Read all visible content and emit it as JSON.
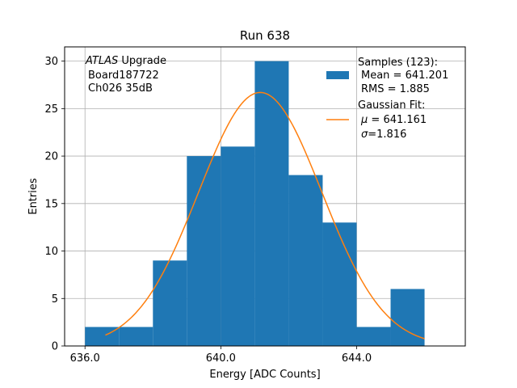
{
  "chart_data": {
    "type": "bar",
    "title": "Run 638",
    "xlabel": "Energy [ADC Counts]",
    "ylabel": "Entries",
    "xlim": [
      635.4,
      647.2
    ],
    "ylim": [
      0,
      31.5
    ],
    "x_ticks": [
      636,
      640,
      644
    ],
    "x_tick_labels": [
      "636.0",
      "640.0",
      "644.0"
    ],
    "y_ticks": [
      0,
      5,
      10,
      15,
      20,
      25,
      30
    ],
    "y_tick_labels": [
      "0",
      "5",
      "10",
      "15",
      "20",
      "25",
      "30"
    ],
    "grid": true,
    "bins": [
      {
        "start": 636,
        "end": 637,
        "count": 2
      },
      {
        "start": 637,
        "end": 638,
        "count": 2
      },
      {
        "start": 638,
        "end": 639,
        "count": 9
      },
      {
        "start": 639,
        "end": 640,
        "count": 20
      },
      {
        "start": 640,
        "end": 641,
        "count": 21
      },
      {
        "start": 641,
        "end": 642,
        "count": 30
      },
      {
        "start": 642,
        "end": 643,
        "count": 18
      },
      {
        "start": 643,
        "end": 644,
        "count": 13
      },
      {
        "start": 644,
        "end": 645,
        "count": 2
      },
      {
        "start": 645,
        "end": 646,
        "count": 6
      }
    ],
    "fit": {
      "name": "Gaussian Fit",
      "amplitude": 26.7,
      "mu": 641.161,
      "sigma": 1.816,
      "x_range": [
        636.6,
        646.0
      ]
    },
    "annotation": {
      "line1_italic": "ATLAS",
      "line1_rest": " Upgrade",
      "line2": "Board187722",
      "line3": "Ch026 35dB"
    },
    "legend": {
      "position": "top-right",
      "hist_title": "Samples (123):",
      "hist_mean": "Mean = 641.201",
      "hist_rms": "RMS = 1.885",
      "fit_title": "Gaussian Fit:",
      "fit_mu_symbol": "μ",
      "fit_mu_value": " = 641.161",
      "fit_sigma_symbol": "σ",
      "fit_sigma_value": "=1.816"
    },
    "colors": {
      "bar": "#1f77b4",
      "fit": "#ff7f0e",
      "grid": "#b0b0b0",
      "axis": "#000000"
    }
  }
}
